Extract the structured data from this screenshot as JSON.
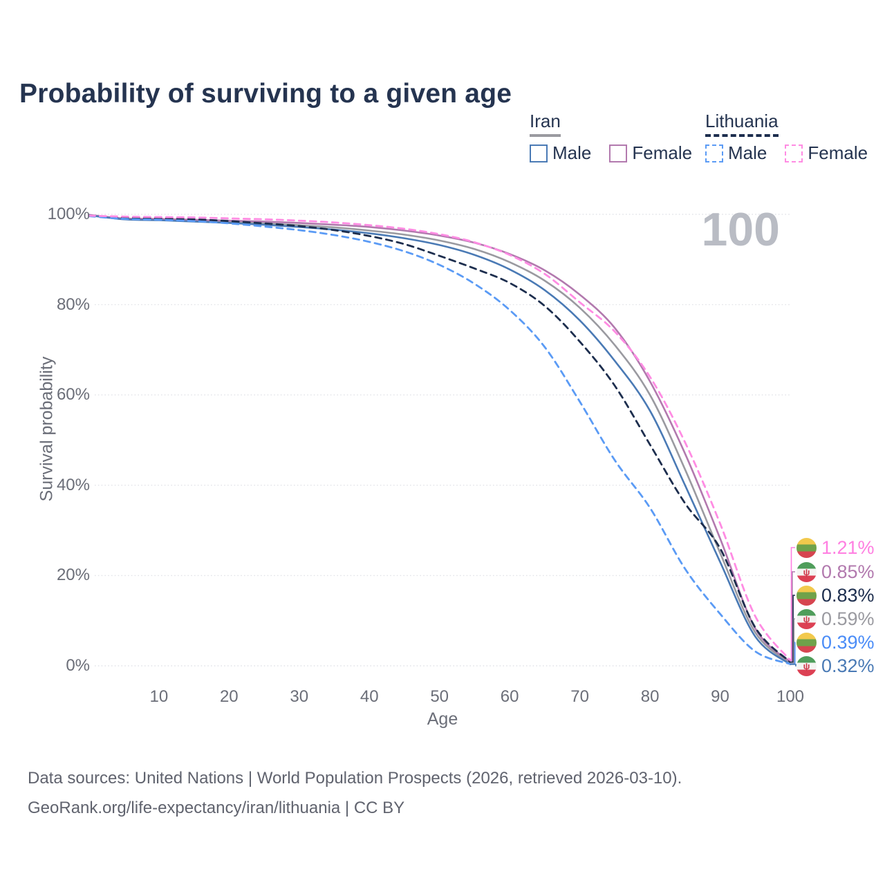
{
  "title": "Probability of surviving to a given age",
  "watermark": "100",
  "legend": {
    "groups": [
      {
        "country": "Iran",
        "line_style": "solid",
        "underline_color": "#9a9aa0",
        "items": [
          {
            "label": "Male",
            "color": "#4a7ab5"
          },
          {
            "label": "Female",
            "color": "#b279ae"
          }
        ]
      },
      {
        "country": "Lithuania",
        "line_style": "dashed",
        "underline_color": "#1d2e4e",
        "items": [
          {
            "label": "Male",
            "color": "#5b9bf5"
          },
          {
            "label": "Female",
            "color": "#ff8ce3"
          }
        ]
      }
    ]
  },
  "chart_data": {
    "type": "line",
    "title": "Probability of surviving to a given age",
    "xlabel": "Age",
    "ylabel": "Survival probability",
    "xlim": [
      0,
      100
    ],
    "ylim": [
      0,
      100
    ],
    "grid": "horizontal dotted gridlines at 0,20,40,60,80,100%",
    "legend_position": "top-right",
    "x_tick_labels": [
      "10",
      "20",
      "30",
      "40",
      "50",
      "60",
      "70",
      "80",
      "90",
      "100"
    ],
    "x_tick_values": [
      10,
      20,
      30,
      40,
      50,
      60,
      70,
      80,
      90,
      100
    ],
    "y_tick_labels": [
      "0%",
      "20%",
      "40%",
      "60%",
      "80%",
      "100%"
    ],
    "y_tick_values": [
      0,
      20,
      40,
      60,
      80,
      100
    ],
    "age_counter_watermark": "100",
    "x": [
      0,
      5,
      10,
      15,
      20,
      25,
      30,
      35,
      40,
      45,
      50,
      55,
      60,
      65,
      70,
      75,
      80,
      85,
      90,
      95,
      100
    ],
    "series": [
      {
        "name": "Iran Both sexes",
        "style": "solid",
        "color": "#9a9aa0",
        "values": [
          99.8,
          99.0,
          98.8,
          98.6,
          98.3,
          98.0,
          97.6,
          97.1,
          96.4,
          95.5,
          94.2,
          92.3,
          89.4,
          85.3,
          79.3,
          71.0,
          60.0,
          43.5,
          25.0,
          7.4,
          0.59
        ],
        "end_label": "0.59%"
      },
      {
        "name": "Iran Female",
        "style": "solid",
        "color": "#b279ae",
        "values": [
          99.9,
          99.1,
          99.0,
          98.8,
          98.6,
          98.4,
          98.1,
          97.7,
          97.2,
          96.4,
          95.3,
          93.7,
          91.2,
          87.6,
          82.2,
          74.8,
          63.0,
          47.0,
          28.2,
          8.3,
          0.85
        ],
        "end_label": "0.85%"
      },
      {
        "name": "Iran Male",
        "style": "solid",
        "color": "#4a7ab5",
        "values": [
          99.8,
          98.9,
          98.7,
          98.4,
          98.1,
          97.7,
          97.2,
          96.6,
          95.8,
          94.7,
          93.2,
          91.0,
          87.8,
          83.2,
          76.5,
          67.5,
          56.5,
          40.0,
          23.0,
          6.5,
          0.32
        ],
        "end_label": "0.32%"
      },
      {
        "name": "Lithuania Both sexes",
        "style": "dashed",
        "color": "#1d2e4e",
        "values": [
          99.7,
          99.2,
          99.1,
          98.9,
          98.5,
          98.0,
          97.4,
          96.5,
          95.2,
          93.4,
          90.8,
          88.0,
          84.8,
          79.7,
          71.8,
          62.0,
          49.0,
          36.0,
          26.0,
          8.5,
          0.83
        ],
        "end_label": "0.83%"
      },
      {
        "name": "Lithuania Male",
        "style": "dashed",
        "color": "#5b9bf5",
        "values": [
          99.6,
          99.0,
          98.8,
          98.5,
          98.0,
          97.3,
          96.5,
          95.4,
          93.9,
          91.8,
          88.8,
          84.6,
          78.8,
          70.6,
          58.5,
          45.5,
          35.0,
          21.5,
          11.5,
          3.2,
          0.39
        ],
        "end_label": "0.39%"
      },
      {
        "name": "Lithuania Female",
        "style": "dashed",
        "color": "#ff8ce3",
        "values": [
          99.7,
          99.5,
          99.4,
          99.3,
          99.1,
          98.9,
          98.6,
          98.2,
          97.6,
          96.8,
          95.6,
          93.8,
          91.0,
          86.8,
          80.5,
          74.0,
          64.0,
          49.5,
          31.5,
          11.0,
          1.21
        ],
        "end_label": "1.21%"
      }
    ]
  },
  "end_labels": [
    {
      "flag": "lithuania",
      "series": "Lithuania Female",
      "value": "1.21%",
      "color": "#ff7fe1"
    },
    {
      "flag": "iran",
      "series": "Iran Female",
      "value": "0.85%",
      "color": "#b279ae"
    },
    {
      "flag": "lithuania",
      "series": "Lithuania Both sexes",
      "value": "0.83%",
      "color": "#1d2e4e"
    },
    {
      "flag": "iran",
      "series": "Iran Both sexes",
      "value": "0.59%",
      "color": "#9a9aa0"
    },
    {
      "flag": "lithuania",
      "series": "Lithuania Male",
      "value": "0.39%",
      "color": "#4a8cf7"
    },
    {
      "flag": "iran",
      "series": "Iran Male",
      "value": "0.32%",
      "color": "#4a7ab5"
    }
  ],
  "flag_colors": {
    "lithuania": [
      "#f2c94c",
      "#6fa24a",
      "#d64550"
    ],
    "iran": [
      "#4f9d5b",
      "#f4f4f2",
      "#dc4053"
    ],
    "iran_emblem": "ψ"
  },
  "footer": {
    "line1": "Data sources: United Nations | World Population Prospects (2026, retrieved 2026-03-10).",
    "line2": "GeoRank.org/life-expectancy/iran/lithuania | CC BY"
  }
}
